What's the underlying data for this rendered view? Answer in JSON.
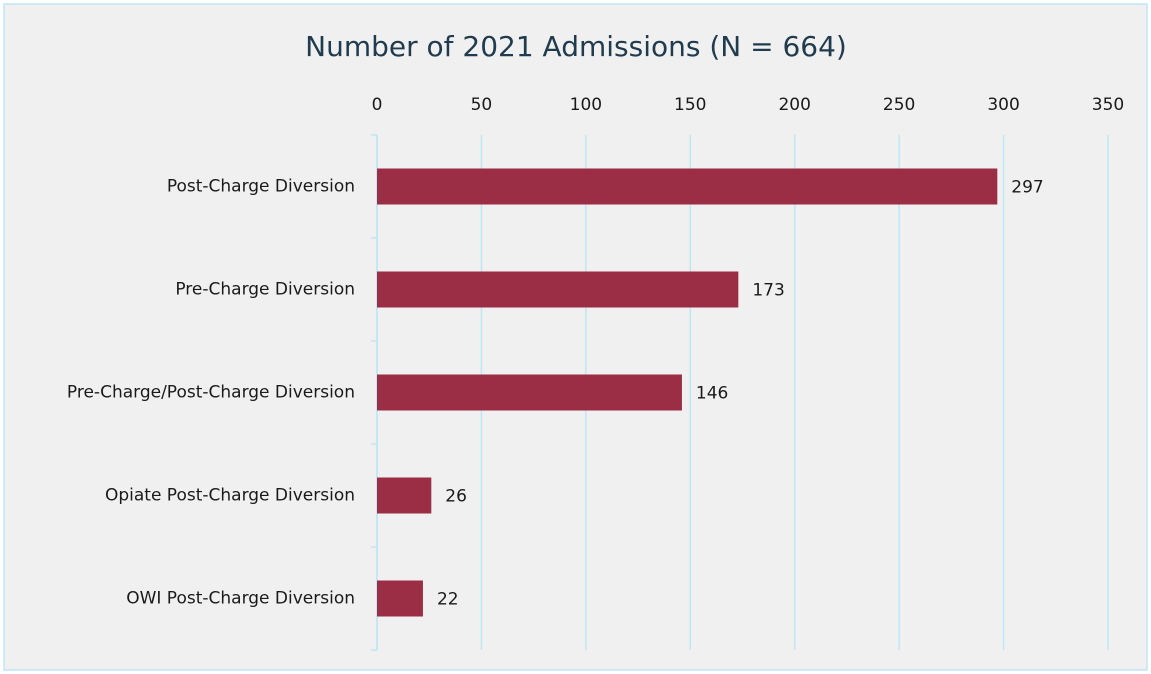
{
  "chart_data": {
    "type": "bar",
    "orientation": "horizontal",
    "title": "Number of 2021 Admissions (N = 664)",
    "categories": [
      "Post-Charge Diversion",
      "Pre-Charge Diversion",
      "Pre-Charge/Post-Charge Diversion",
      "Opiate Post-Charge Diversion",
      "OWI Post-Charge Diversion"
    ],
    "values": [
      297,
      173,
      146,
      26,
      22
    ],
    "color": "#9b2d45",
    "xlim": [
      0,
      350
    ],
    "xticks": [
      0,
      50,
      100,
      150,
      200,
      250,
      300,
      350
    ],
    "grid": true
  }
}
